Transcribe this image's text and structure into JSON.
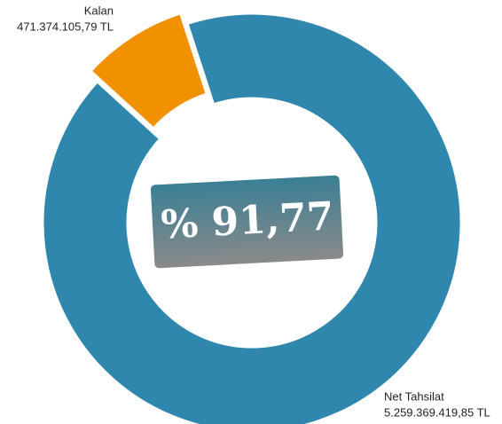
{
  "chart_data": {
    "type": "pie",
    "donut": true,
    "categories": [
      "Net Tahsilat",
      "Kalan"
    ],
    "values": [
      5259369419.85,
      471374105.79
    ],
    "value_labels": [
      "5.259.369.419,85 TL",
      "471.374.105,79 TL"
    ],
    "colors": [
      "#2f87ad",
      "#f29100"
    ],
    "center_label": "% 91,77"
  }
}
